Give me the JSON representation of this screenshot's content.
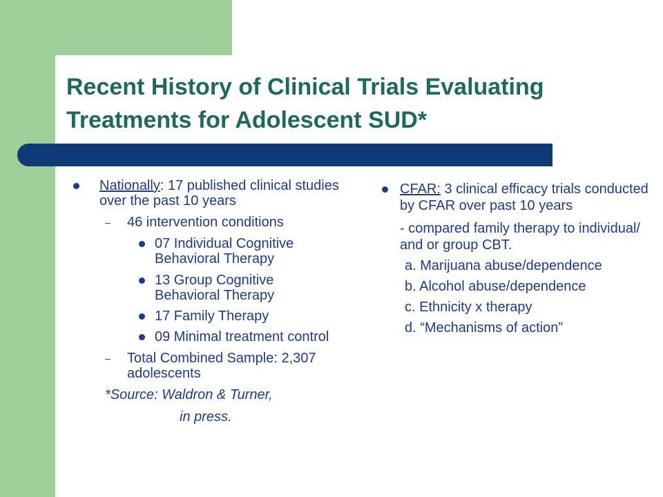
{
  "slide": {
    "title": "Recent History of Clinical Trials Evaluating Treatments for  Adolescent SUD*"
  },
  "left": {
    "bullet_lead": "Nationally",
    "bullet_rest": ": 17 published clinical studies over the past 10 years",
    "sub1": "46 intervention conditions",
    "conditions": [
      "07 Individual Cognitive Behavioral Therapy",
      "13 Group Cognitive Behavioral Therapy",
      "17 Family Therapy",
      "09 Minimal treatment control"
    ],
    "sub2": "Total Combined Sample: 2,307 adolescents",
    "source_line1": "*Source: Waldron & Turner,",
    "source_line2": "in press."
  },
  "right": {
    "bullet_lead": "CFAR:",
    "bullet_rest": " 3 clinical efficacy trials conducted by CFAR over past 10 years",
    "compare": "- compared family therapy to individual/ and or group CBT.",
    "items": [
      "a. Marijuana abuse/dependence",
      "b. Alcohol abuse/dependence",
      "c. Ethnicity x therapy",
      "d. “Mechanisms of action”"
    ]
  }
}
